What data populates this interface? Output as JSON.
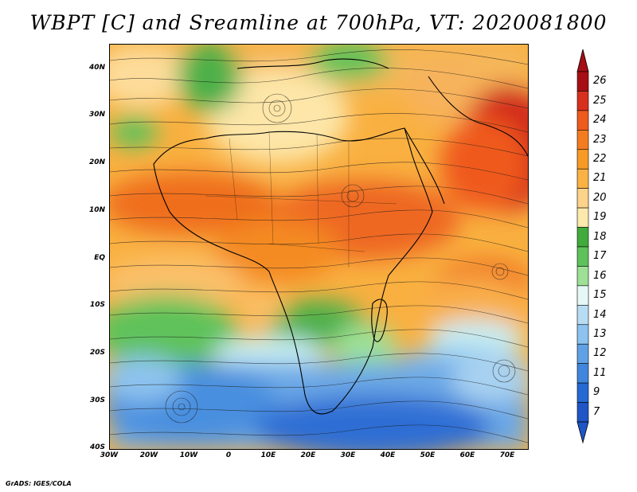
{
  "title": "WBPT [C] and Sreamline at 700hPa, VT: 2020081800",
  "credit": "GrADS: IGES/COLA",
  "map": {
    "lat_labels": [
      "40N",
      "30N",
      "20N",
      "10N",
      "EQ",
      "10S",
      "20S",
      "30S",
      "40S"
    ],
    "lon_labels": [
      "30W",
      "20W",
      "10W",
      "0",
      "10E",
      "20E",
      "30E",
      "40E",
      "50E",
      "60E",
      "70E"
    ],
    "lat_range": [
      -40,
      45
    ],
    "lon_range": [
      -30,
      75
    ]
  },
  "colorbar": {
    "labels": [
      "26",
      "25",
      "24",
      "23",
      "22",
      "21",
      "20",
      "19",
      "18",
      "17",
      "16",
      "15",
      "14",
      "13",
      "12",
      "11",
      "9",
      "7"
    ],
    "colors": [
      "#a50f15",
      "#d7301f",
      "#ef5a1e",
      "#f47c20",
      "#f89a26",
      "#fbb244",
      "#fdd28a",
      "#fde9ac",
      "#41ab3d",
      "#5ec25a",
      "#9de096",
      "#e6f8f6",
      "#b8dcf4",
      "#8dc3ee",
      "#5fa1e4",
      "#3f86dc",
      "#2569d2",
      "#1f55c4"
    ]
  }
}
